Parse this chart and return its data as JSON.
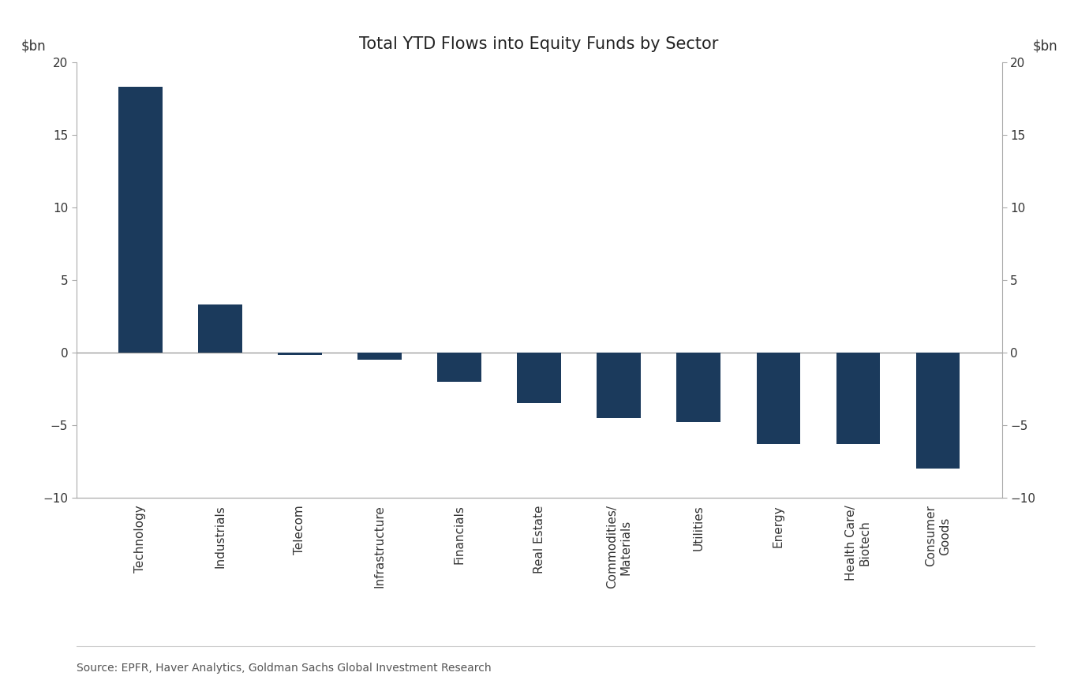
{
  "title": "Total YTD Flows into Equity Funds by Sector",
  "ylabel_left": "$bn",
  "ylabel_right": "$bn",
  "source": "Source: EPFR, Haver Analytics, Goldman Sachs Global Investment Research",
  "categories": [
    "Technology",
    "Industrials",
    "Telecom",
    "Infrastructure",
    "Financials",
    "Real Estate",
    "Commodities/\nMaterials",
    "Utilities",
    "Energy",
    "Health Care/\nBiotech",
    "Consumer\nGoods"
  ],
  "values": [
    18.3,
    3.3,
    -0.2,
    -0.5,
    -2.0,
    -3.5,
    -4.5,
    -4.8,
    -6.3,
    -6.3,
    -8.0
  ],
  "bar_color": "#1b3a5c",
  "ylim": [
    -10,
    20
  ],
  "yticks": [
    -10,
    -5,
    0,
    5,
    10,
    15,
    20
  ],
  "background_color": "#ffffff",
  "bar_width": 0.55,
  "title_fontsize": 15,
  "axis_label_fontsize": 12,
  "tick_fontsize": 11,
  "source_fontsize": 10
}
